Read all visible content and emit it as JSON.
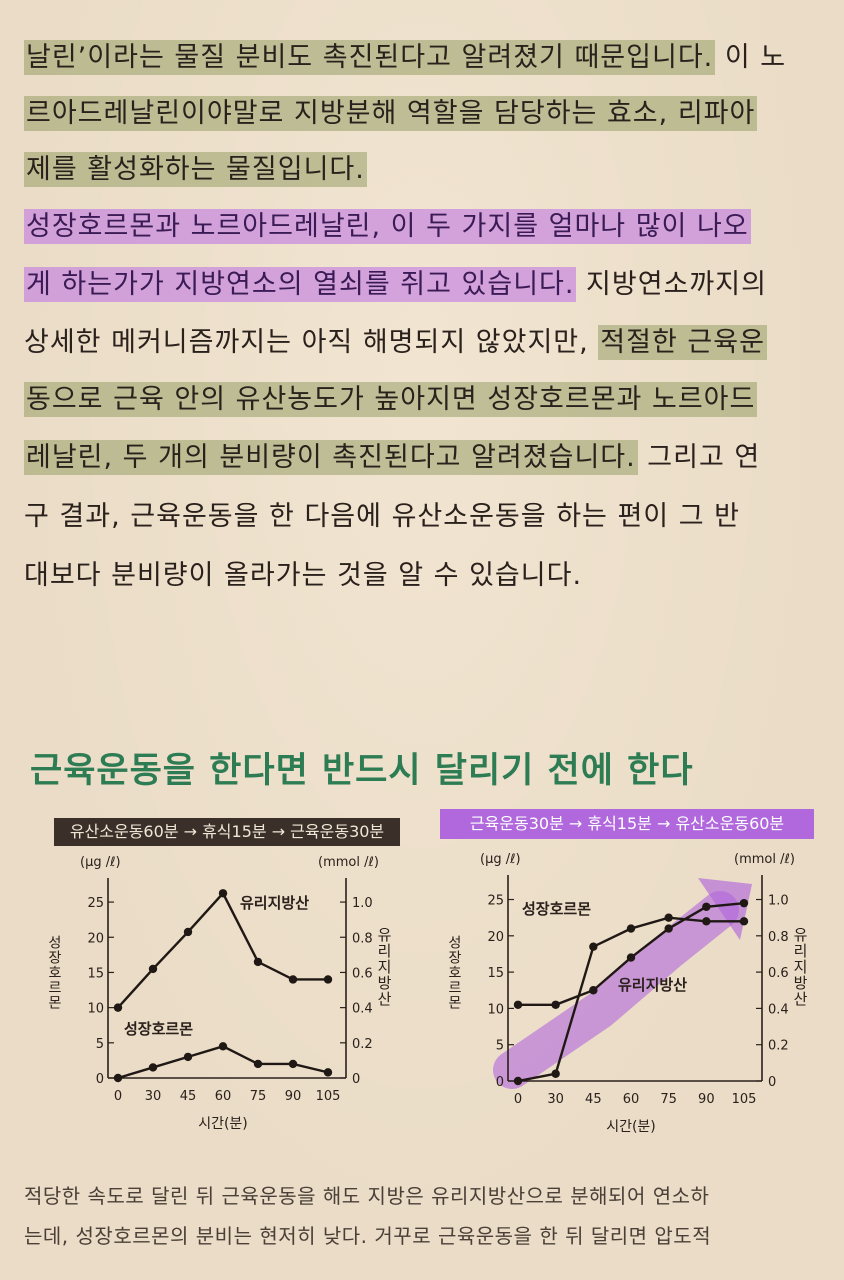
{
  "body_lines": [
    {
      "segments": [
        {
          "t": "날린’이라는 물질 분비도 촉진된다고 알려졌기 때문입니다.",
          "hl": "green"
        },
        {
          "t": " 이 노",
          "hl": ""
        }
      ]
    },
    {
      "segments": [
        {
          "t": "르아드레날린이야말로 지방분해 역할을 담당하는 효소, 리파아",
          "hl": "green"
        }
      ]
    },
    {
      "segments": [
        {
          "t": "제를 활성화하는 물질입니다.",
          "hl": "green"
        }
      ]
    },
    {
      "segments": [
        {
          "t": "  ",
          "hl": ""
        },
        {
          "t": "성장호르몬과 노르아드레날린, 이 두 가지를 얼마나 많이 나오",
          "hl": "purple"
        }
      ]
    },
    {
      "segments": [
        {
          "t": "게 하는가가 지방연소의 열쇠를 쥐고 있습니다.",
          "hl": "purple"
        },
        {
          "t": " 지방연소까지의",
          "hl": ""
        }
      ]
    },
    {
      "segments": [
        {
          "t": "상세한 메커니즘까지는 아직 해명되지 않았지만, ",
          "hl": ""
        },
        {
          "t": "적절한 근육운",
          "hl": "green"
        }
      ]
    },
    {
      "segments": [
        {
          "t": "동으로 근육 안의 유산농도가 높아지면 성장호르몬과 노르아드",
          "hl": "green"
        }
      ]
    },
    {
      "segments": [
        {
          "t": "레날린, 두 개의 분비량이 촉진된다고 알려졌습니다.",
          "hl": "green"
        },
        {
          "t": " 그리고 연",
          "hl": ""
        }
      ]
    },
    {
      "segments": [
        {
          "t": "구 결과, 근육운동을 한 다음에 유산소운동을 하는 편이 그 반",
          "hl": ""
        }
      ]
    },
    {
      "segments": [
        {
          "t": "대보다 분비량이 올라가는 것을 알 수 있습니다.",
          "hl": ""
        }
      ]
    }
  ],
  "section_title": "근육운동을 한다면 반드시 달리기 전에 한다",
  "colors": {
    "title_green": "#2d7c53",
    "dark_bar": "#3b3029",
    "purple": "#b068dc"
  },
  "chart_data": [
    {
      "type": "line",
      "title": "유산소운동60분 → 휴식15분 → 근육운동30분",
      "xlabel": "시간(분)",
      "x": [
        0,
        30,
        45,
        60,
        75,
        90,
        105
      ],
      "y_left": {
        "label": "성장호르몬",
        "unit": "(μg /ℓ)",
        "ticks": [
          0,
          5,
          10,
          15,
          20,
          25
        ],
        "range": [
          0,
          27
        ]
      },
      "y_right": {
        "label": "유리지방산",
        "unit": "(mmol /ℓ)",
        "ticks": [
          "0",
          "0.2",
          "0.4",
          "0.6",
          "0.8",
          "1.0"
        ],
        "range": [
          0,
          1.08
        ]
      },
      "series": [
        {
          "name": "유리지방산",
          "axis": "right",
          "values": [
            0.4,
            0.62,
            0.83,
            1.05,
            0.66,
            0.56,
            0.56
          ]
        },
        {
          "name": "성장호르몬",
          "axis": "left",
          "values": [
            0.0,
            1.5,
            3.0,
            4.5,
            2.0,
            2.0,
            0.8
          ]
        }
      ]
    },
    {
      "type": "line",
      "title": "근육운동30분 → 휴식15분 → 유산소운동60분",
      "xlabel": "시간(분)",
      "x": [
        0,
        30,
        45,
        60,
        75,
        90,
        105
      ],
      "y_left": {
        "label": "성장호르몬",
        "unit": "(μg /ℓ)",
        "ticks": [
          0,
          5,
          10,
          15,
          20,
          25
        ],
        "range": [
          0,
          27
        ]
      },
      "y_right": {
        "label": "유리지방산",
        "unit": "(mmol /ℓ)",
        "ticks": [
          "0",
          "0.2",
          "0.4",
          "0.6",
          "0.8",
          "1.0"
        ],
        "range": [
          0,
          1.08
        ]
      },
      "series": [
        {
          "name": "성장호르몬",
          "axis": "left",
          "values": [
            0.0,
            1.0,
            18.5,
            21.0,
            22.5,
            22.0,
            22.0
          ]
        },
        {
          "name": "유리지방산",
          "axis": "right",
          "values": [
            0.42,
            0.42,
            0.5,
            0.68,
            0.84,
            0.96,
            0.98
          ]
        }
      ]
    }
  ],
  "caption_lines": [
    "적당한 속도로 달린 뒤 근육운동을 해도 지방은 유리지방산으로 분해되어 연소하",
    "는데, 성장호르몬의 분비는 현저히 낮다. 거꾸로 근육운동을 한 뒤 달리면 압도적"
  ]
}
